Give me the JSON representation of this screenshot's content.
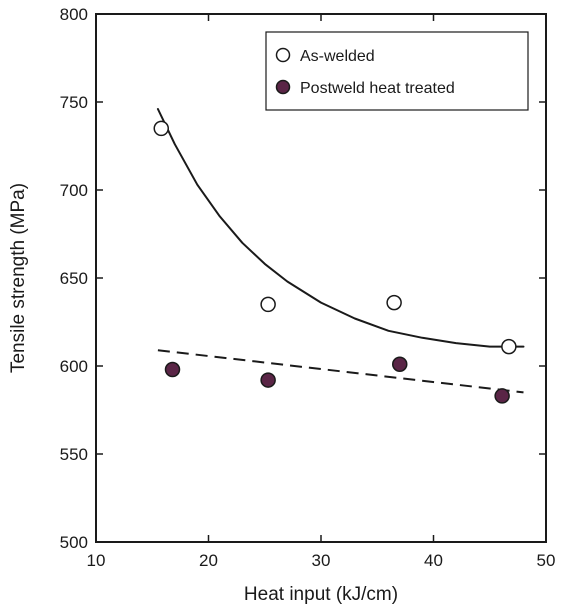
{
  "chart_data": {
    "type": "scatter",
    "title": "",
    "xlabel": "Heat input (kJ/cm)",
    "ylabel": "Tensile strength (MPa)",
    "xlim": [
      10,
      50
    ],
    "ylim": [
      500,
      800
    ],
    "x_ticks": [
      10,
      20,
      30,
      40,
      50
    ],
    "y_ticks": [
      500,
      550,
      600,
      650,
      700,
      750,
      800
    ],
    "grid": false,
    "legend_position": "top-right",
    "series": [
      {
        "name": "As-welded",
        "marker": "open-circle",
        "color": "#ffffff",
        "x": [
          15.8,
          25.3,
          36.5,
          46.7
        ],
        "y": [
          735,
          635,
          636,
          611
        ],
        "fit": {
          "style": "solid",
          "x": [
            15.5,
            17,
            19,
            21,
            23,
            25,
            27,
            30,
            33,
            36,
            39,
            42,
            45,
            48
          ],
          "y": [
            746,
            726,
            703,
            685,
            670,
            658,
            648,
            636,
            627,
            620,
            616,
            613,
            611,
            611
          ]
        }
      },
      {
        "name": "Postweld heat treated",
        "marker": "filled-circle",
        "color": "#5a2546",
        "x": [
          16.8,
          25.3,
          37.0,
          46.1
        ],
        "y": [
          598,
          592,
          601,
          583
        ],
        "fit": {
          "style": "dashed",
          "x": [
            15.5,
            48
          ],
          "y": [
            609,
            585
          ]
        }
      }
    ]
  }
}
